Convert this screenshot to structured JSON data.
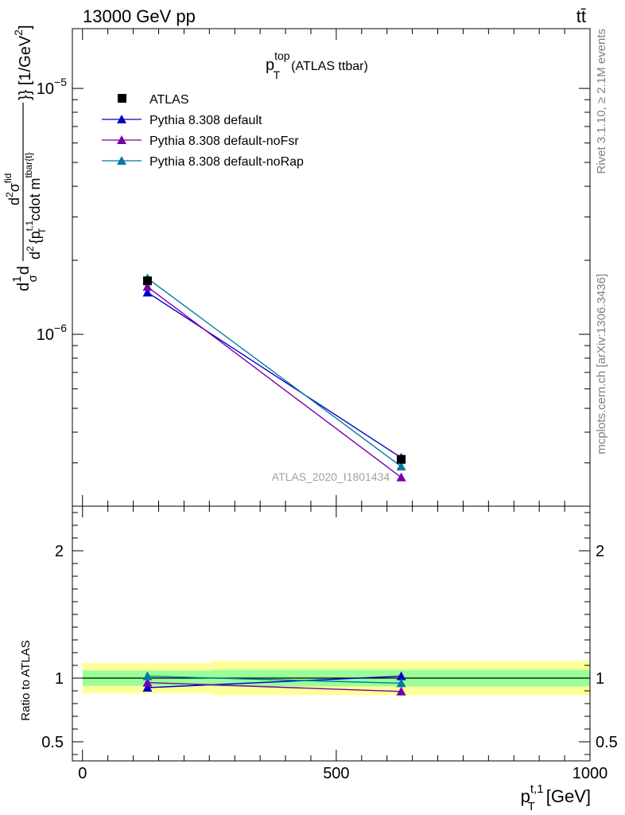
{
  "header": {
    "left": "13000 GeV pp",
    "right": "tt̄"
  },
  "side_labels": {
    "rivet": "Rivet 3.1.10, ≥ 2.1M events",
    "mcplots": "mcplots.cern.ch [arXiv:1306.3436]"
  },
  "colors": {
    "ATLAS": "#000000",
    "default": "#0000cc",
    "noFsr": "#7700aa",
    "noRap": "#007ba3",
    "band_outer": "#ffff99",
    "band_inner": "#99ff99"
  },
  "chart_data": [
    {
      "type": "line",
      "title_main": "p",
      "title_sup": "top",
      "title_sub": "T",
      "title_rest": "(ATLAS ttbar)",
      "ylabel": "d 1/σ d d²σ^{fid} / d² {p_T^{t,1} cdot m^{tbar{t}}} [1/GeV²]",
      "ylabel_parts": {
        "frac1": "1",
        "frac1_den": "σ",
        "prefix": "d",
        "prefix2": "d",
        "num_sup": "fid",
        "num_base": "d",
        "num_sup2": "2",
        "num_sigma": "σ",
        "den_d": "d",
        "den_sup": "2",
        "den_text1": "{p",
        "den_t1_sup": "t,1",
        "den_t1_sub": "T",
        "den_text2": "cdot m",
        "den_m_sup": "tbar{t}",
        "den_end": "}} [1/GeV",
        "den_end_sup": "2",
        "den_close": "]"
      },
      "yscale": "log",
      "ylim": [
        2e-07,
        1.75e-05
      ],
      "yticks_major": [
        {
          "value": 1e-06,
          "base": "10",
          "exp": "−6"
        },
        {
          "value": 1e-05,
          "base": "10",
          "exp": "−5"
        }
      ],
      "xlim": [
        -20,
        1000
      ],
      "analysis_label": "ATLAS_2020_I1801434",
      "legend_position": "top-left",
      "series": [
        {
          "name": "ATLAS",
          "key": "ATLAS",
          "marker": "square",
          "x": [
            128,
            628
          ],
          "y": [
            1.65e-06,
            3.1e-07
          ]
        },
        {
          "name": "Pythia 8.308 default",
          "key": "default",
          "marker": "triangle",
          "x": [
            128,
            628
          ],
          "y": [
            1.48e-06,
            3.15e-07
          ]
        },
        {
          "name": "Pythia 8.308 default-noFsr",
          "key": "noFsr",
          "marker": "triangle",
          "x": [
            128,
            628
          ],
          "y": [
            1.56e-06,
            2.62e-07
          ]
        },
        {
          "name": "Pythia 8.308 default-noRap",
          "key": "noRap",
          "marker": "triangle",
          "x": [
            128,
            628
          ],
          "y": [
            1.69e-06,
            2.9e-07
          ]
        }
      ]
    },
    {
      "type": "line",
      "ylabel": "Ratio to ATLAS",
      "ylim": [
        0.35,
        2.35
      ],
      "yticks": [
        0.5,
        1,
        2
      ],
      "ytick_labels": [
        "0.5",
        "1",
        "2"
      ],
      "xlim": [
        -20,
        1000
      ],
      "xticks": [
        0,
        500,
        1000
      ],
      "xtick_labels": [
        "0",
        "500",
        "1000"
      ],
      "xlabel_parts": {
        "base": "p",
        "sup": "t,1",
        "sub": "T",
        "unit": "[GeV]"
      },
      "bands": [
        {
          "x": [
            0,
            256
          ],
          "outer": [
            0.88,
            1.12
          ],
          "inner": [
            0.94,
            1.06
          ]
        },
        {
          "x": [
            256,
            1000
          ],
          "outer": [
            0.865,
            1.135
          ],
          "inner": [
            0.935,
            1.065
          ]
        }
      ],
      "series": [
        {
          "name": "Pythia 8.308 default",
          "key": "default",
          "x": [
            128,
            628
          ],
          "y": [
            0.925,
            1.015
          ],
          "err": [
            0,
            0.02
          ]
        },
        {
          "name": "Pythia 8.308 default-noFsr",
          "key": "noFsr",
          "x": [
            128,
            628
          ],
          "y": [
            0.965,
            0.895
          ],
          "err": [
            0,
            0.01
          ]
        },
        {
          "name": "Pythia 8.308 default-noRap",
          "key": "noRap",
          "x": [
            128,
            628
          ],
          "y": [
            1.015,
            0.96
          ],
          "err": [
            0,
            0.01
          ]
        }
      ]
    }
  ]
}
